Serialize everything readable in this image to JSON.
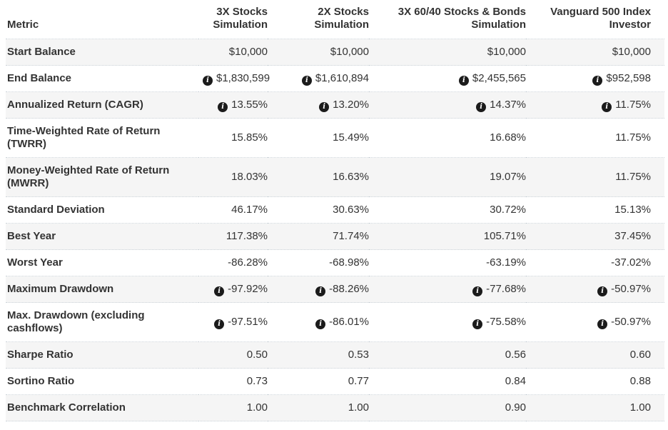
{
  "table": {
    "header": {
      "metric_label": "Metric",
      "columns": [
        [
          "3X Stocks",
          "Simulation"
        ],
        [
          "2X Stocks",
          "Simulation"
        ],
        [
          "3X 60/40 Stocks & Bonds",
          "Simulation"
        ],
        [
          "Vanguard 500 Index",
          "Investor"
        ]
      ]
    },
    "rows": [
      {
        "metric": "Start Balance",
        "info": false,
        "values": [
          "$10,000",
          "$10,000",
          "$10,000",
          "$10,000"
        ]
      },
      {
        "metric": "End Balance",
        "info": true,
        "values": [
          "$1,830,599",
          "$1,610,894",
          "$2,455,565",
          "$952,598"
        ]
      },
      {
        "metric": "Annualized Return (CAGR)",
        "info": true,
        "values": [
          "13.55%",
          "13.20%",
          "14.37%",
          "11.75%"
        ]
      },
      {
        "metric": "Time-Weighted Rate of Return (TWRR)",
        "info": false,
        "values": [
          "15.85%",
          "15.49%",
          "16.68%",
          "11.75%"
        ]
      },
      {
        "metric": "Money-Weighted Rate of Return (MWRR)",
        "info": false,
        "values": [
          "18.03%",
          "16.63%",
          "19.07%",
          "11.75%"
        ]
      },
      {
        "metric": "Standard Deviation",
        "info": false,
        "values": [
          "46.17%",
          "30.63%",
          "30.72%",
          "15.13%"
        ]
      },
      {
        "metric": "Best Year",
        "info": false,
        "values": [
          "117.38%",
          "71.74%",
          "105.71%",
          "37.45%"
        ]
      },
      {
        "metric": "Worst Year",
        "info": false,
        "values": [
          "-86.28%",
          "-68.98%",
          "-63.19%",
          "-37.02%"
        ]
      },
      {
        "metric": "Maximum Drawdown",
        "info": true,
        "values": [
          "-97.92%",
          "-88.26%",
          "-77.68%",
          "-50.97%"
        ]
      },
      {
        "metric": "Max. Drawdown (excluding cashflows)",
        "info": true,
        "values": [
          "-97.51%",
          "-86.01%",
          "-75.58%",
          "-50.97%"
        ]
      },
      {
        "metric": "Sharpe Ratio",
        "info": false,
        "values": [
          "0.50",
          "0.53",
          "0.56",
          "0.60"
        ]
      },
      {
        "metric": "Sortino Ratio",
        "info": false,
        "values": [
          "0.73",
          "0.77",
          "0.84",
          "0.88"
        ]
      },
      {
        "metric": "Benchmark Correlation",
        "info": false,
        "values": [
          "1.00",
          "1.00",
          "0.90",
          "1.00"
        ]
      }
    ]
  },
  "icons": {
    "info_icon_glyph": "i"
  },
  "colors": {
    "stripe": "#f5f5f5",
    "row_border": "#ccd3d9",
    "text": "#333333",
    "info_icon_bg": "#1b1b1b"
  }
}
